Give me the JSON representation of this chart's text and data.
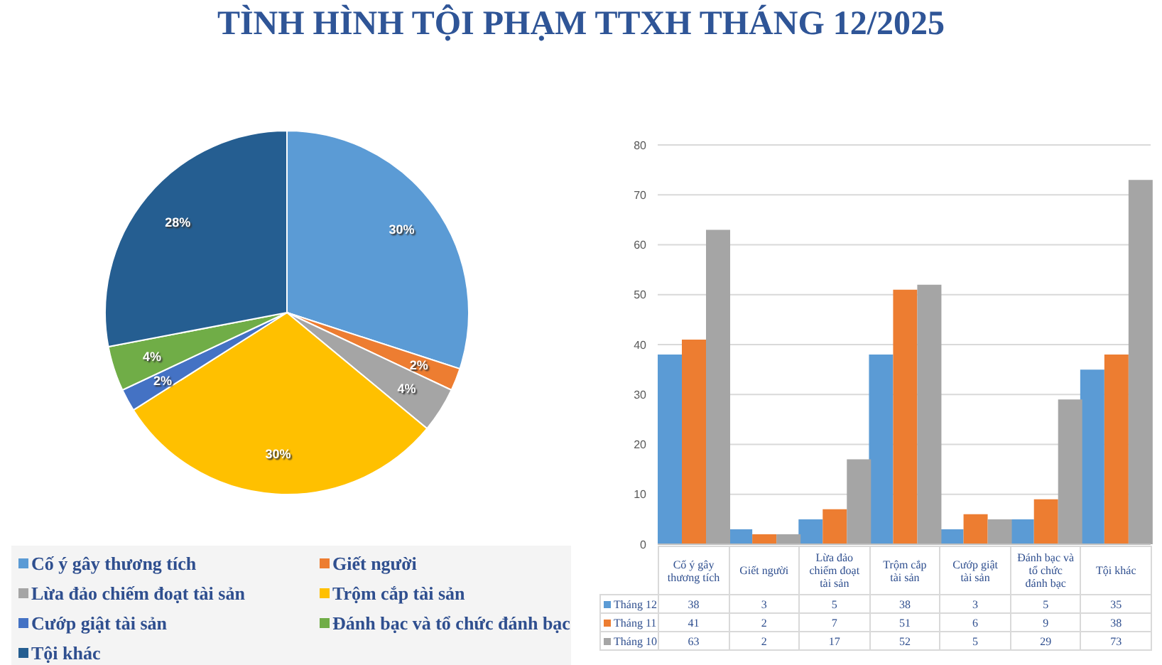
{
  "chart_data": [
    {
      "type": "pie",
      "title": "TÌNH HÌNH TỘI PHẠM TTXH THÁNG 12/2025",
      "categories": [
        "Cố ý gây thương tích",
        "Giết người",
        "Lừa đảo chiếm đoạt tài sản",
        "Trộm cắp tài sản",
        "Cướp giật tài sản",
        "Đánh bạc và tổ chức đánh bạc",
        "Tội khác"
      ],
      "values": [
        30,
        2,
        4,
        30,
        2,
        4,
        28
      ],
      "colors": [
        "#5b9bd5",
        "#ed7d31",
        "#a5a5a5",
        "#ffc000",
        "#4472c4",
        "#70ad47",
        "#255e91"
      ],
      "value_labels": [
        "30%",
        "2%",
        "4%",
        "30%",
        "2%",
        "4%",
        "28%"
      ],
      "legend": "bottom"
    },
    {
      "type": "bar",
      "categories": [
        "Cố ý gây thương tích",
        "Giết người",
        "Lừa đảo chiếm đoạt tài sản",
        "Trộm cắp tài sản",
        "Cướp giật tài sản",
        "Đánh bạc và tổ chức đánh bạc",
        "Tội khác"
      ],
      "series": [
        {
          "name": "Tháng 12",
          "color": "#5b9bd5",
          "values": [
            38,
            3,
            5,
            38,
            3,
            5,
            35
          ]
        },
        {
          "name": "Tháng 11",
          "color": "#ed7d31",
          "values": [
            41,
            2,
            7,
            51,
            6,
            9,
            38
          ]
        },
        {
          "name": "Tháng 10",
          "color": "#a5a5a5",
          "values": [
            63,
            2,
            17,
            52,
            5,
            29,
            73
          ]
        }
      ],
      "ylim": [
        0,
        80
      ],
      "yticks": [
        0,
        10,
        20,
        30,
        40,
        50,
        60,
        70,
        80
      ],
      "grid": "y",
      "legend": "bottom",
      "data_labels": true
    }
  ]
}
